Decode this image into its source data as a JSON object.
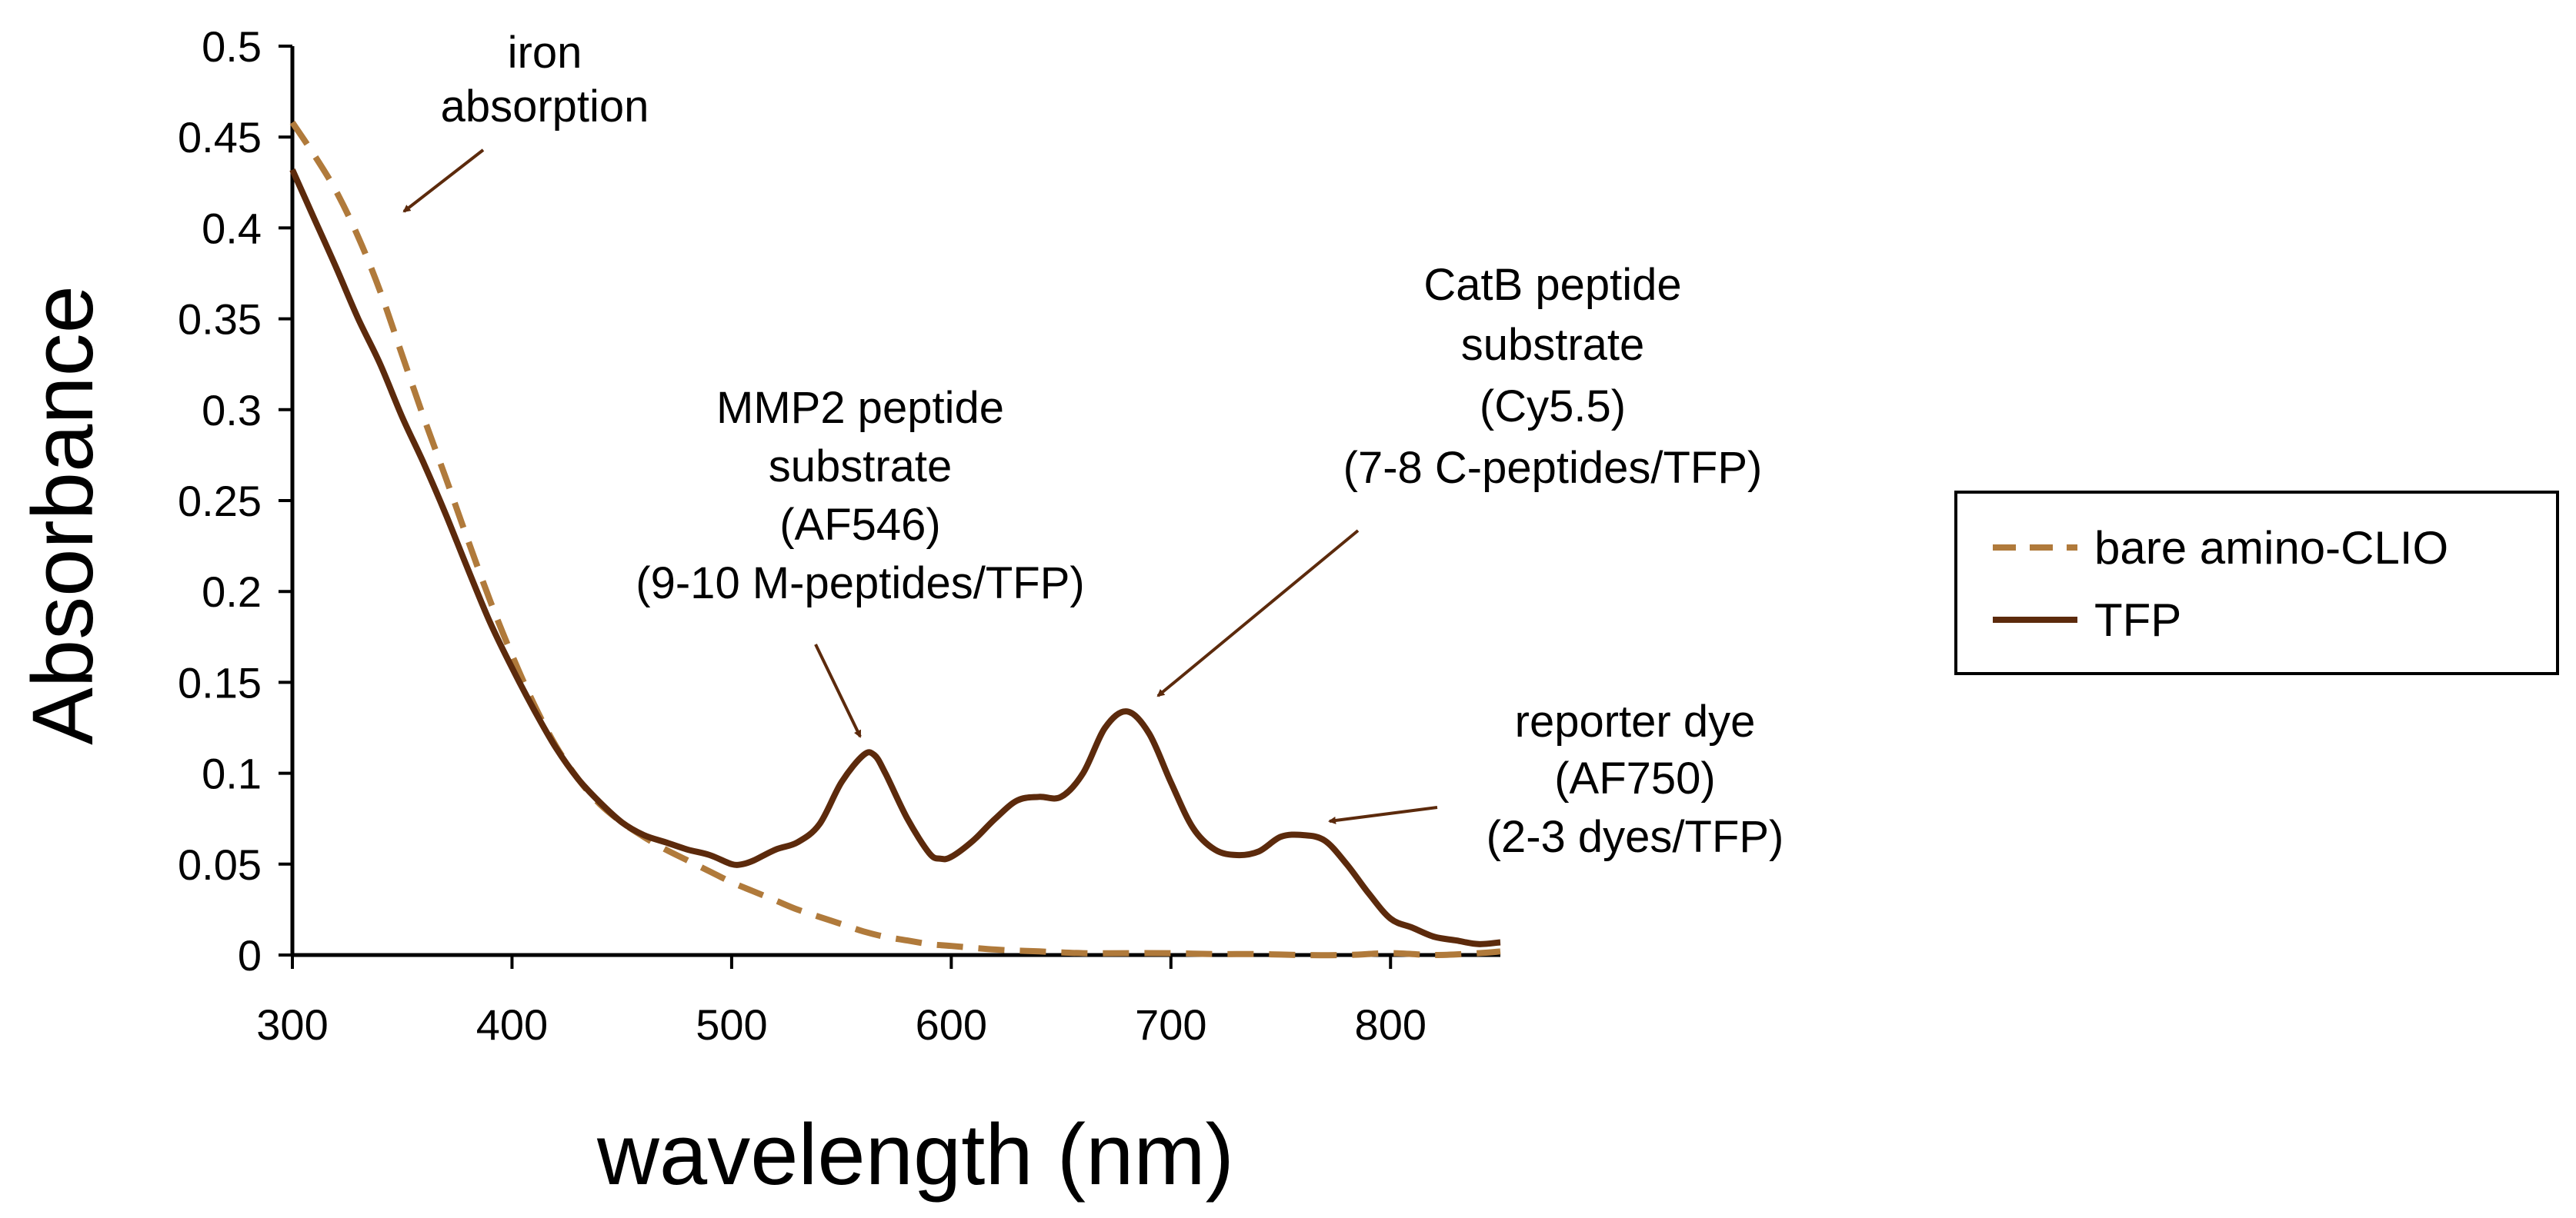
{
  "chart_data": {
    "type": "line",
    "title": "",
    "xlabel": "wavelength (nm)",
    "ylabel": "Absorbance",
    "xlim": [
      300,
      850
    ],
    "ylim": [
      0,
      0.5
    ],
    "x_ticks": [
      300,
      400,
      500,
      600,
      700,
      800
    ],
    "x_tick_labels": [
      "300",
      "400",
      "500",
      "600",
      "700",
      "800"
    ],
    "y_ticks": [
      0,
      0.05,
      0.1,
      0.15,
      0.2,
      0.25,
      0.3,
      0.35,
      0.4,
      0.45,
      0.5
    ],
    "y_tick_labels": [
      "0",
      "0.05",
      "0.1",
      "0.15",
      "0.2",
      "0.25",
      "0.3",
      "0.35",
      "0.4",
      "0.45",
      "0.5"
    ],
    "grid": false,
    "legend_position": "right",
    "series": [
      {
        "name": "bare amino-CLIO",
        "style": "dashed",
        "color": "#B07A3B",
        "x": [
          300,
          310,
          320,
          330,
          340,
          350,
          360,
          370,
          380,
          390,
          400,
          410,
          420,
          430,
          440,
          450,
          460,
          470,
          480,
          490,
          500,
          510,
          520,
          530,
          540,
          550,
          560,
          570,
          580,
          590,
          600,
          620,
          640,
          660,
          680,
          700,
          720,
          740,
          760,
          780,
          800,
          820,
          840,
          850
        ],
        "y": [
          0.458,
          0.44,
          0.42,
          0.395,
          0.365,
          0.33,
          0.295,
          0.262,
          0.228,
          0.195,
          0.165,
          0.138,
          0.115,
          0.097,
          0.083,
          0.073,
          0.065,
          0.058,
          0.052,
          0.046,
          0.04,
          0.035,
          0.03,
          0.025,
          0.021,
          0.017,
          0.013,
          0.01,
          0.008,
          0.006,
          0.005,
          0.003,
          0.002,
          0.001,
          0.001,
          0.001,
          0.0005,
          0.0005,
          0.0,
          0.0,
          0.001,
          0.0,
          0.001,
          0.002
        ]
      },
      {
        "name": "TFP",
        "style": "solid",
        "color": "#5C2A0C",
        "x": [
          300,
          310,
          320,
          330,
          340,
          350,
          360,
          370,
          380,
          390,
          400,
          410,
          420,
          430,
          440,
          450,
          460,
          470,
          480,
          490,
          500,
          505,
          510,
          520,
          530,
          540,
          550,
          560,
          565,
          570,
          580,
          590,
          595,
          600,
          610,
          620,
          630,
          640,
          650,
          660,
          670,
          680,
          690,
          700,
          710,
          720,
          730,
          740,
          750,
          760,
          770,
          780,
          790,
          800,
          810,
          820,
          830,
          840,
          850
        ],
        "y": [
          0.432,
          0.405,
          0.378,
          0.35,
          0.325,
          0.296,
          0.27,
          0.242,
          0.212,
          0.183,
          0.158,
          0.135,
          0.114,
          0.097,
          0.084,
          0.073,
          0.066,
          0.062,
          0.058,
          0.055,
          0.05,
          0.05,
          0.052,
          0.058,
          0.062,
          0.072,
          0.095,
          0.11,
          0.11,
          0.1,
          0.075,
          0.056,
          0.053,
          0.054,
          0.063,
          0.075,
          0.085,
          0.087,
          0.087,
          0.1,
          0.125,
          0.134,
          0.122,
          0.095,
          0.07,
          0.058,
          0.055,
          0.057,
          0.065,
          0.066,
          0.063,
          0.05,
          0.034,
          0.02,
          0.015,
          0.01,
          0.008,
          0.006,
          0.007
        ]
      }
    ],
    "annotations": [
      {
        "lines": [
          "iron",
          "absorption"
        ]
      },
      {
        "lines": [
          "MMP2 peptide",
          "substrate",
          "(AF546)",
          "(9-10 M-peptides/TFP)"
        ]
      },
      {
        "lines": [
          "CatB peptide",
          "substrate",
          "(Cy5.5)",
          "(7-8 C-peptides/TFP)"
        ]
      },
      {
        "lines": [
          "reporter dye",
          "(AF750)",
          "(2-3 dyes/TFP)"
        ]
      }
    ],
    "legend": [
      {
        "label": "bare amino-CLIO"
      },
      {
        "label": "TFP"
      }
    ]
  }
}
